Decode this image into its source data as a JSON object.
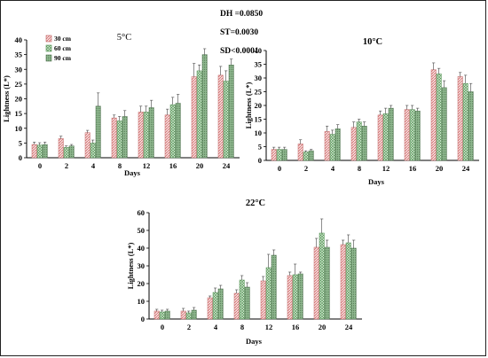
{
  "stats": {
    "dh": "DH =0.0850",
    "st": "ST=0.0030",
    "sd": "SD<0.0001"
  },
  "legend": [
    "30 cm",
    "60 cm",
    "90 cm"
  ],
  "chart_data": [
    {
      "type": "bar",
      "title": "5°C",
      "xlabel": "Days",
      "ylabel": "Lightness (L*)",
      "ylim": [
        0,
        40
      ],
      "yticks": [
        0,
        5,
        10,
        15,
        20,
        25,
        30,
        35,
        40
      ],
      "categories": [
        "0",
        "2",
        "4",
        "8",
        "12",
        "16",
        "20",
        "24"
      ],
      "series": [
        {
          "name": "30 cm",
          "values": [
            4.5,
            6.5,
            8.5,
            13.5,
            15.5,
            14.5,
            27.5,
            28.0
          ],
          "errors": [
            0.8,
            0.8,
            0.8,
            1.0,
            2.0,
            2.0,
            4.5,
            3.0
          ]
        },
        {
          "name": "60 cm",
          "values": [
            4.3,
            3.5,
            5.0,
            12.5,
            15.5,
            18.0,
            29.5,
            26.0
          ],
          "errors": [
            0.8,
            0.5,
            1.0,
            1.5,
            2.0,
            2.5,
            2.0,
            3.5
          ]
        },
        {
          "name": "90 cm",
          "values": [
            4.5,
            4.0,
            17.5,
            14.0,
            17.0,
            18.5,
            35.0,
            31.5
          ],
          "errors": [
            0.8,
            0.5,
            4.5,
            2.0,
            2.5,
            3.0,
            2.0,
            2.0
          ]
        }
      ],
      "grid": false
    },
    {
      "type": "bar",
      "title": "10°C",
      "xlabel": "Days",
      "ylabel": "Lightness (L*)",
      "ylim": [
        0,
        40
      ],
      "yticks": [
        0,
        5,
        10,
        15,
        20,
        25,
        30,
        35,
        40
      ],
      "categories": [
        "0",
        "2",
        "4",
        "8",
        "12",
        "16",
        "20",
        "24"
      ],
      "series": [
        {
          "name": "30 cm",
          "values": [
            4.0,
            6.0,
            10.5,
            12.0,
            16.5,
            18.5,
            33.0,
            30.5
          ],
          "errors": [
            0.8,
            1.5,
            2.0,
            2.0,
            1.5,
            1.5,
            2.5,
            1.5
          ]
        },
        {
          "name": "60 cm",
          "values": [
            4.0,
            3.0,
            9.5,
            14.0,
            17.0,
            18.5,
            31.5,
            28.0
          ],
          "errors": [
            0.8,
            0.5,
            1.5,
            1.0,
            2.0,
            1.5,
            2.0,
            3.0
          ]
        },
        {
          "name": "90 cm",
          "values": [
            4.0,
            3.5,
            11.5,
            12.5,
            19.0,
            18.0,
            26.5,
            25.0
          ],
          "errors": [
            0.8,
            0.5,
            1.5,
            1.5,
            1.0,
            1.0,
            2.5,
            3.0
          ]
        }
      ],
      "grid": false
    },
    {
      "type": "bar",
      "title": "22°C",
      "xlabel": "Days",
      "ylabel": "Lightness (L*)",
      "ylim": [
        0,
        60
      ],
      "yticks": [
        0,
        10,
        20,
        30,
        40,
        50,
        60
      ],
      "categories": [
        "0",
        "2",
        "4",
        "8",
        "12",
        "16",
        "20",
        "24"
      ],
      "series": [
        {
          "name": "30 cm",
          "values": [
            4.5,
            4.5,
            12.0,
            14.5,
            21.5,
            24.5,
            40.5,
            42.0
          ],
          "errors": [
            1.0,
            1.5,
            1.0,
            2.0,
            2.5,
            2.0,
            5.0,
            2.5
          ]
        },
        {
          "name": "60 cm",
          "values": [
            4.0,
            3.5,
            15.0,
            22.0,
            29.0,
            25.0,
            48.5,
            43.0
          ],
          "errors": [
            1.0,
            1.0,
            2.5,
            2.5,
            7.5,
            6.0,
            8.0,
            4.5
          ]
        },
        {
          "name": "90 cm",
          "values": [
            4.5,
            5.0,
            17.0,
            18.0,
            36.0,
            25.5,
            40.5,
            40.0
          ],
          "errors": [
            1.0,
            1.5,
            2.0,
            2.5,
            3.0,
            1.0,
            4.0,
            4.5
          ]
        }
      ],
      "grid": false
    }
  ],
  "colors": {
    "s30": "#e89898",
    "s60": "#8fc88f",
    "s90": "#6e9a6e",
    "axis": "#000000"
  }
}
